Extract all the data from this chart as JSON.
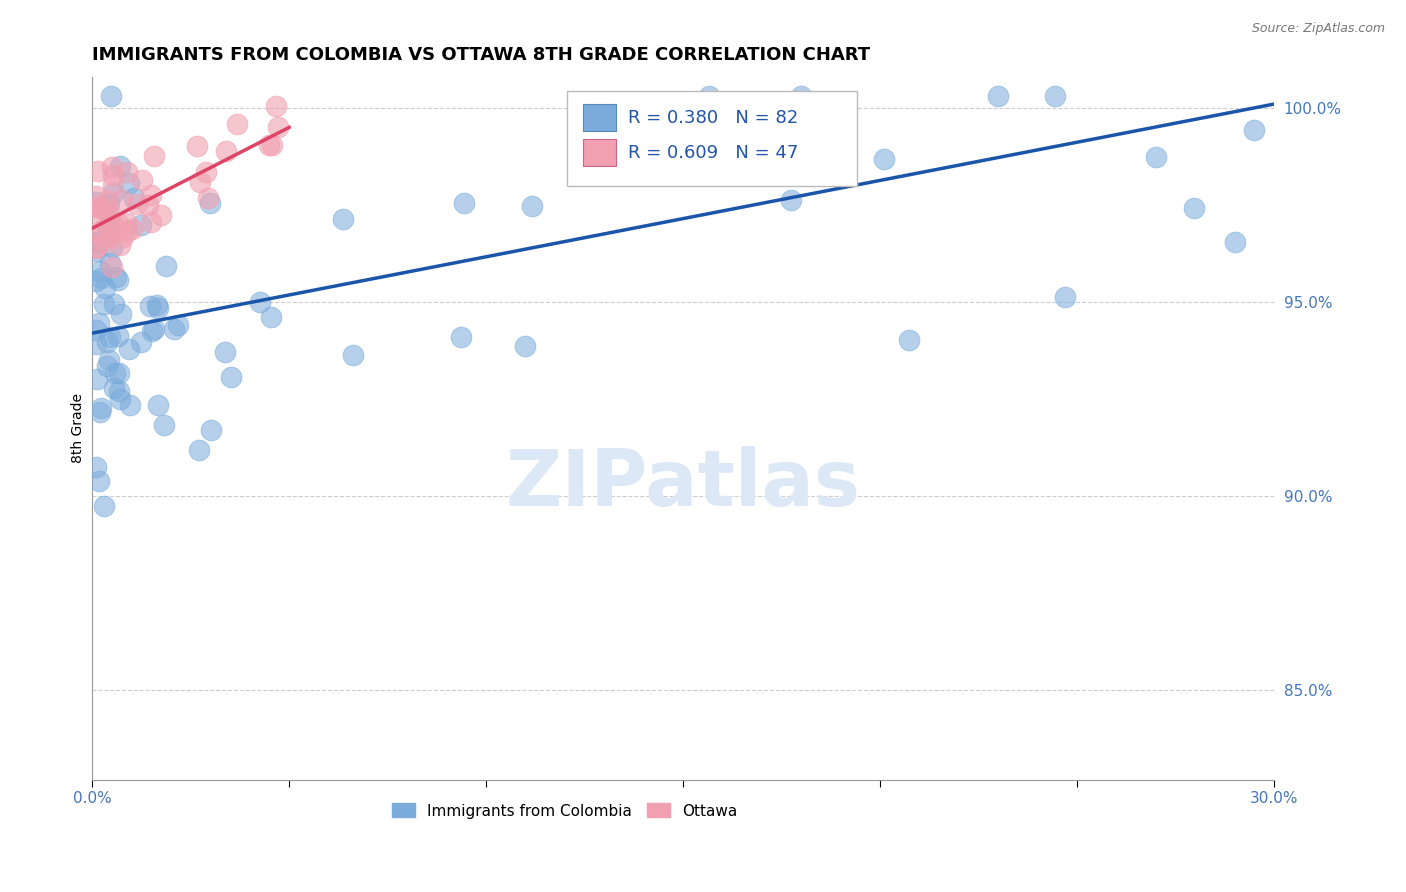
{
  "title": "IMMIGRANTS FROM COLOMBIA VS OTTAWA 8TH GRADE CORRELATION CHART",
  "source_text": "Source: ZipAtlas.com",
  "ylabel": "8th Grade",
  "xlim": [
    0.0,
    0.3
  ],
  "ylim": [
    0.827,
    1.008
  ],
  "xticks": [
    0.0,
    0.05,
    0.1,
    0.15,
    0.2,
    0.25,
    0.3
  ],
  "xticklabels": [
    "0.0%",
    "",
    "",
    "",
    "",
    "",
    "30.0%"
  ],
  "yticks": [
    0.85,
    0.9,
    0.95,
    1.0
  ],
  "yticklabels": [
    "85.0%",
    "90.0%",
    "95.0%",
    "100.0%"
  ],
  "blue_R": 0.38,
  "blue_N": 82,
  "pink_R": 0.609,
  "pink_N": 47,
  "blue_color": "#7aabdb",
  "pink_color": "#f0a0b0",
  "blue_line_color": "#1a55aa",
  "pink_line_color": "#dd4466",
  "grid_color": "#cccccc",
  "title_fontsize": 13,
  "tick_label_color": "#4477bb",
  "watermark_text": "ZIPatlas",
  "watermark_color": "#dce8f5",
  "legend_label_blue": "Immigrants from Colombia",
  "legend_label_pink": "Ottawa",
  "blue_trend_x0": 0.0,
  "blue_trend_y0": 0.942,
  "blue_trend_x1": 0.3,
  "blue_trend_y1": 1.001,
  "pink_trend_x0": 0.0,
  "pink_trend_y0": 0.969,
  "pink_trend_x1": 0.05,
  "pink_trend_y1": 0.995
}
